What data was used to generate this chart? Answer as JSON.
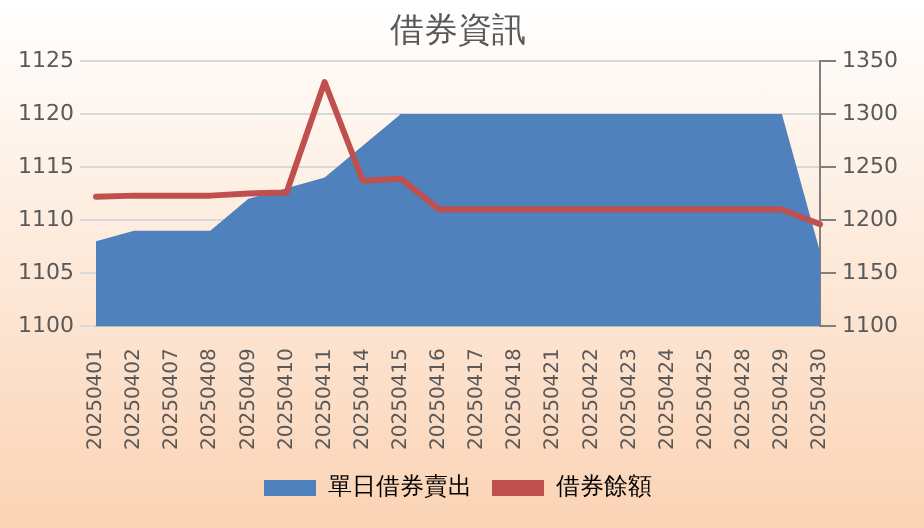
{
  "chart_data": {
    "type": "area",
    "title": "借券資訊",
    "categories": [
      "20250401",
      "20250402",
      "20250407",
      "20250408",
      "20250409",
      "20250410",
      "20250411",
      "20250414",
      "20250415",
      "20250416",
      "20250417",
      "20250418",
      "20250421",
      "20250422",
      "20250423",
      "20250424",
      "20250425",
      "20250428",
      "20250429",
      "20250430"
    ],
    "series": [
      {
        "name": "單日借券賣出",
        "color": "#4f81bd",
        "values": [
          1108,
          1109,
          1109,
          1109,
          1112,
          1113,
          1114,
          1117,
          1120,
          1120,
          1120,
          1120,
          1120,
          1120,
          1120,
          1120,
          1120,
          1120,
          1120,
          1107
        ]
      },
      {
        "name": "借券餘額",
        "type": "line",
        "axis": "y2",
        "color": "#c0504d",
        "values": [
          1222,
          1223,
          1223,
          1223,
          1225,
          1226,
          1330,
          1237,
          1239,
          1210,
          1210,
          1210,
          1210,
          1210,
          1210,
          1210,
          1210,
          1210,
          1210,
          1196
        ]
      }
    ],
    "ylim": [
      1100,
      1125
    ],
    "yticks": [
      1100,
      1105,
      1110,
      1115,
      1120,
      1125
    ],
    "y2lim": [
      1100,
      1350
    ],
    "y2ticks": [
      1100,
      1150,
      1200,
      1250,
      1300,
      1350
    ],
    "grid": "y",
    "legend": "bottom",
    "marker": "none"
  }
}
